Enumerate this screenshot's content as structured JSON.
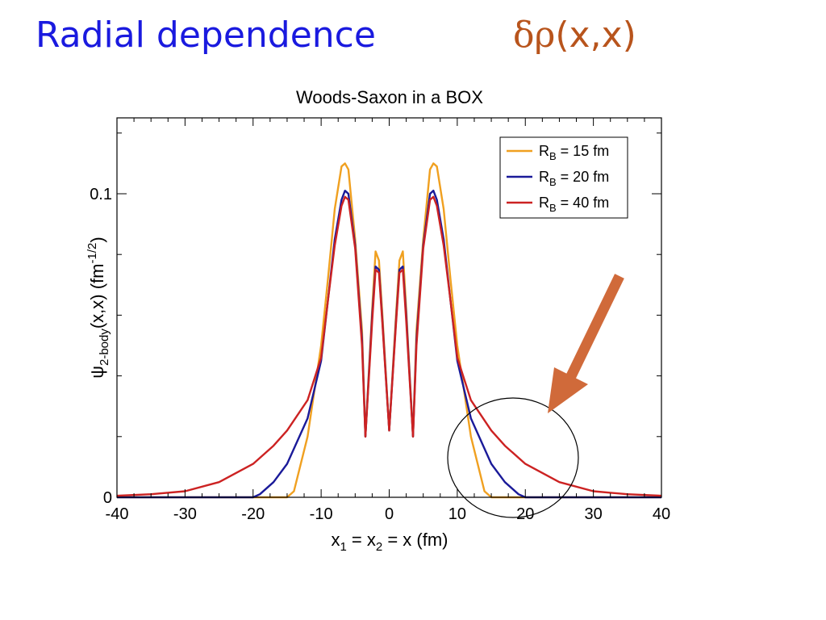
{
  "slide": {
    "title": "Radial dependence",
    "formula_symbol": "δρ",
    "formula_args": "(x,x)",
    "accent_title_color": "#1a1adf",
    "accent_formula_color": "#b8541c",
    "arrow_color": "#d06a3a"
  },
  "chart_data": {
    "type": "line",
    "title": "Woods-Saxon in a BOX",
    "xlabel": "x1 = x2 = x (fm)",
    "ylabel": "ψ2-body(x,x) (fm^-1/2)",
    "xlim": [
      -40,
      40
    ],
    "ylim": [
      0,
      0.125
    ],
    "x_ticks": [
      -40,
      -30,
      -20,
      -10,
      0,
      10,
      20,
      30,
      40
    ],
    "y_ticks": [
      0,
      0.1
    ],
    "legend_position": "top-right",
    "grid": false,
    "series": [
      {
        "name": "RB = 15 fm",
        "color": "#f0a020",
        "x": [
          -40,
          -15,
          -14,
          -12,
          -10,
          -9,
          -8,
          -7,
          -6.5,
          -6,
          -5,
          -4,
          -3.5,
          -2.5,
          -2,
          -1.5,
          -1,
          0,
          1,
          1.5,
          2,
          2.5,
          3.5,
          4,
          5,
          6,
          6.5,
          7,
          8,
          9,
          10,
          12,
          14,
          15,
          40
        ],
        "y": [
          0,
          0,
          0.002,
          0.02,
          0.05,
          0.072,
          0.095,
          0.109,
          0.11,
          0.108,
          0.085,
          0.055,
          0.02,
          0.062,
          0.081,
          0.078,
          0.06,
          0.022,
          0.06,
          0.078,
          0.081,
          0.062,
          0.02,
          0.055,
          0.085,
          0.108,
          0.11,
          0.109,
          0.095,
          0.072,
          0.05,
          0.02,
          0.002,
          0,
          0
        ]
      },
      {
        "name": "RB = 20 fm",
        "color": "#1a1a99",
        "x": [
          -40,
          -20,
          -19,
          -17,
          -15,
          -12,
          -10,
          -9,
          -8,
          -7,
          -6.5,
          -6,
          -5,
          -4,
          -3.5,
          -2.5,
          -2,
          -1.5,
          -1,
          0,
          1,
          1.5,
          2,
          2.5,
          3.5,
          4,
          5,
          6,
          6.5,
          7,
          8,
          9,
          10,
          12,
          15,
          17,
          19,
          20,
          40
        ],
        "y": [
          0,
          0,
          0.001,
          0.005,
          0.011,
          0.026,
          0.045,
          0.065,
          0.085,
          0.098,
          0.101,
          0.1,
          0.083,
          0.052,
          0.02,
          0.06,
          0.076,
          0.075,
          0.058,
          0.022,
          0.058,
          0.075,
          0.076,
          0.06,
          0.02,
          0.052,
          0.083,
          0.1,
          0.101,
          0.098,
          0.085,
          0.065,
          0.045,
          0.026,
          0.011,
          0.005,
          0.001,
          0,
          0
        ]
      },
      {
        "name": "RB = 40 fm",
        "color": "#cc2222",
        "x": [
          -40,
          -35,
          -30,
          -25,
          -20,
          -17,
          -15,
          -12,
          -10,
          -9,
          -8,
          -7,
          -6.5,
          -6,
          -5,
          -4,
          -3.5,
          -2.5,
          -2,
          -1.5,
          -1,
          0,
          1,
          1.5,
          2,
          2.5,
          3.5,
          4,
          5,
          6,
          6.5,
          7,
          8,
          9,
          10,
          12,
          15,
          17,
          20,
          25,
          30,
          35,
          40
        ],
        "y": [
          0.0005,
          0.001,
          0.002,
          0.005,
          0.011,
          0.017,
          0.022,
          0.032,
          0.046,
          0.065,
          0.083,
          0.096,
          0.099,
          0.098,
          0.082,
          0.05,
          0.02,
          0.058,
          0.075,
          0.074,
          0.057,
          0.022,
          0.057,
          0.074,
          0.075,
          0.058,
          0.02,
          0.05,
          0.082,
          0.098,
          0.099,
          0.096,
          0.083,
          0.065,
          0.046,
          0.032,
          0.022,
          0.017,
          0.011,
          0.005,
          0.002,
          0.001,
          0.0005
        ]
      }
    ]
  }
}
